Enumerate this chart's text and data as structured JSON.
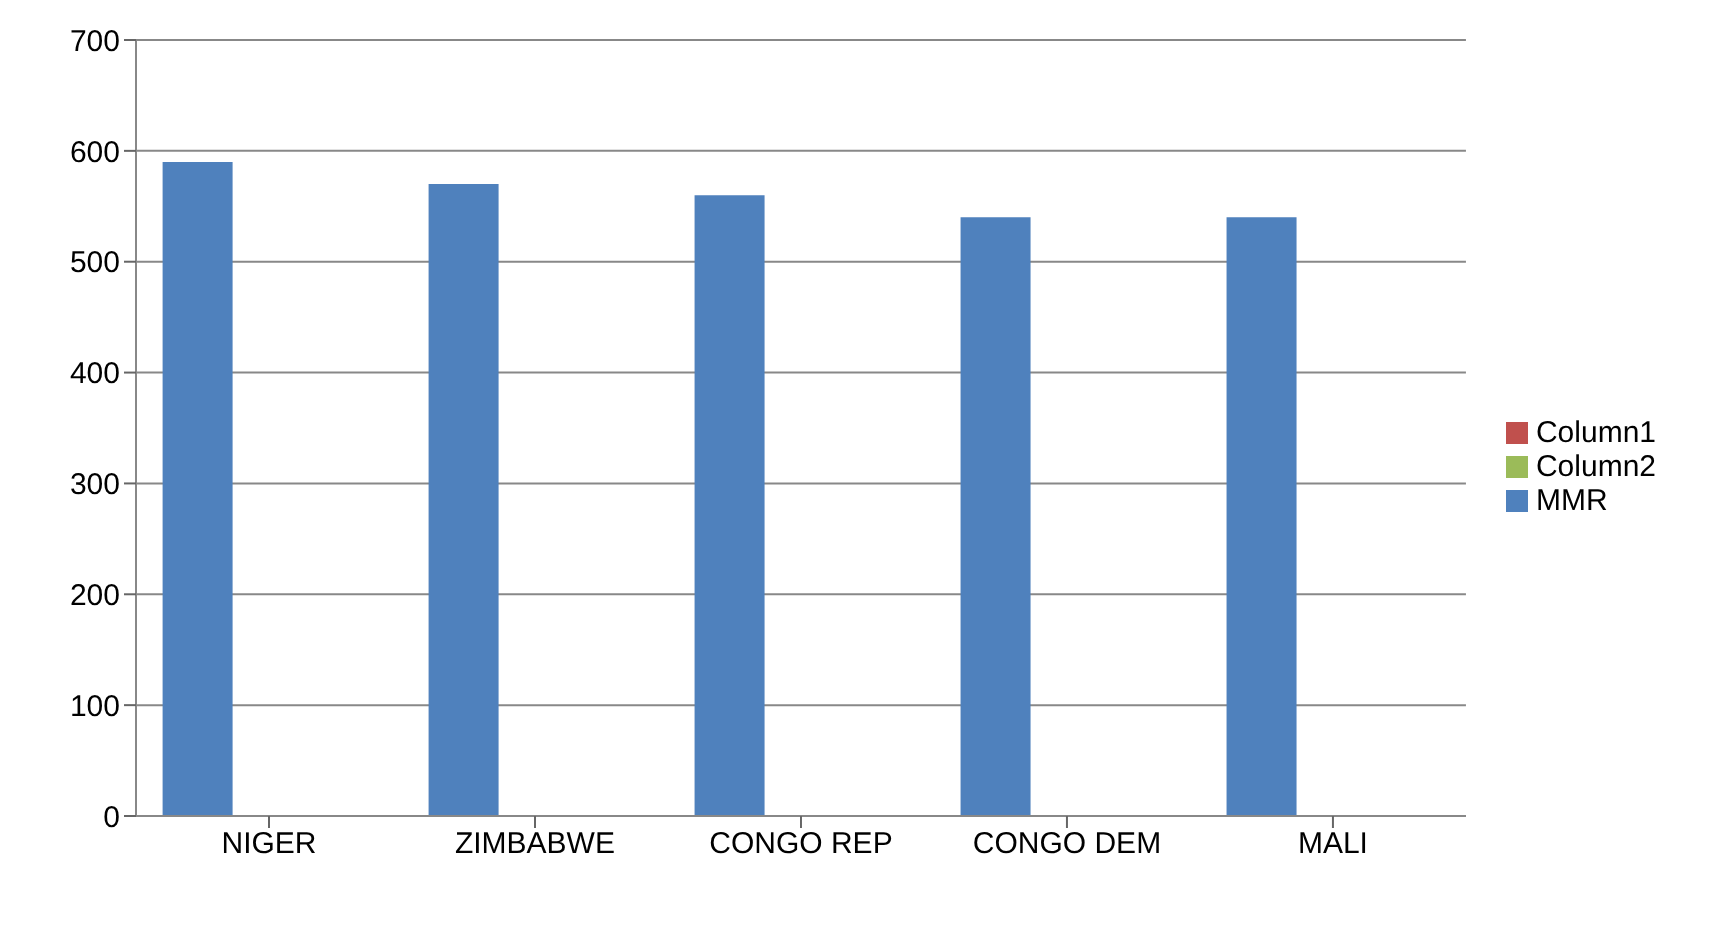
{
  "chart_data": {
    "type": "bar",
    "categories": [
      "NIGER",
      "ZIMBABWE",
      "CONGO REP",
      "CONGO DEM",
      "MALI"
    ],
    "series": [
      {
        "name": "MMR",
        "color": "#4f81bd",
        "values": [
          590,
          570,
          560,
          540,
          540
        ]
      },
      {
        "name": "Column1",
        "color": "#c0504d",
        "values": [
          null,
          null,
          null,
          null,
          null
        ]
      },
      {
        "name": "Column2",
        "color": "#9bbb59",
        "values": [
          null,
          null,
          null,
          null,
          null
        ]
      }
    ],
    "ylim": [
      0,
      700
    ],
    "yticks": [
      0,
      100,
      200,
      300,
      400,
      500,
      600,
      700
    ],
    "grid": "y",
    "legend": "right"
  }
}
